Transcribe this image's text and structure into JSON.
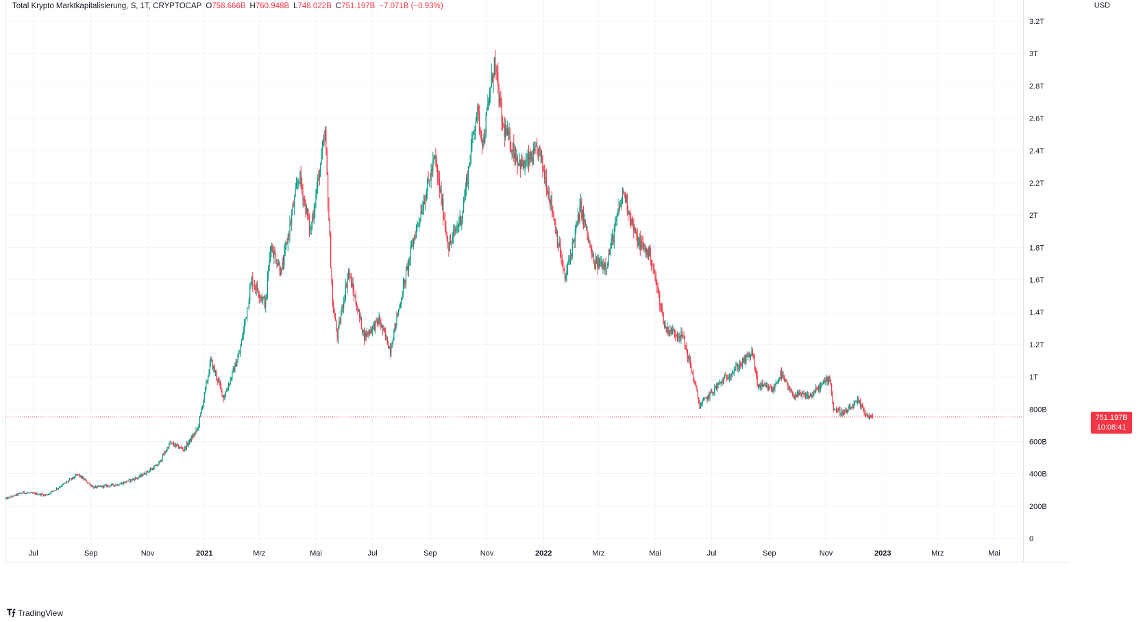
{
  "legend": {
    "symbol": "Total Krypto Marktkapitalisierung, S, 1T, CRYPTOCAP",
    "open_key": "O",
    "open": "758.666B",
    "high_key": "H",
    "high": "760.948B",
    "low_key": "L",
    "low": "748.022B",
    "close_key": "C",
    "close": "751.197B",
    "change": "−7.071B (−0.93%)"
  },
  "axis": {
    "currency": "USD",
    "y_ticks": [
      "0",
      "200B",
      "400B",
      "600B",
      "800B",
      "1T",
      "1.2T",
      "1.4T",
      "1.6T",
      "1.8T",
      "2T",
      "2.2T",
      "2.4T",
      "2.6T",
      "2.8T",
      "3T",
      "3.2T"
    ],
    "x_ticks": [
      {
        "label": "Jul",
        "bold": false
      },
      {
        "label": "Sep",
        "bold": false
      },
      {
        "label": "Nov",
        "bold": false
      },
      {
        "label": "2021",
        "bold": true
      },
      {
        "label": "Mrz",
        "bold": false
      },
      {
        "label": "Mai",
        "bold": false
      },
      {
        "label": "Jul",
        "bold": false
      },
      {
        "label": "Sep",
        "bold": false
      },
      {
        "label": "Nov",
        "bold": false
      },
      {
        "label": "2022",
        "bold": true
      },
      {
        "label": "Mrz",
        "bold": false
      },
      {
        "label": "Mai",
        "bold": false
      },
      {
        "label": "Jul",
        "bold": false
      },
      {
        "label": "Sep",
        "bold": false
      },
      {
        "label": "Nov",
        "bold": false
      },
      {
        "label": "2023",
        "bold": true
      },
      {
        "label": "Mrz",
        "bold": false
      },
      {
        "label": "Mai",
        "bold": false
      }
    ]
  },
  "price_tag": {
    "price": "751.197B",
    "countdown": "10:08:41"
  },
  "brand": {
    "name": "TradingView",
    "icon": "tradingview-logo-icon"
  },
  "colors": {
    "up": "#089981",
    "down": "#f23645",
    "grid": "#f0f3fa",
    "price_line": "#f23645"
  },
  "chart_data": {
    "type": "candlestick",
    "y_unit": "USD (billions)",
    "ylim": [
      0,
      3200
    ],
    "x_range": [
      "2020-06-01",
      "2023-06-01"
    ],
    "interval": "1 day",
    "grid": true,
    "last_price": 751.197,
    "anchors": [
      [
        "2020-06-01",
        245
      ],
      [
        "2020-06-20",
        285
      ],
      [
        "2020-07-15",
        268
      ],
      [
        "2020-08-01",
        330
      ],
      [
        "2020-08-18",
        395
      ],
      [
        "2020-09-04",
        315
      ],
      [
        "2020-10-01",
        335
      ],
      [
        "2020-10-22",
        378
      ],
      [
        "2020-11-12",
        455
      ],
      [
        "2020-11-25",
        590
      ],
      [
        "2020-12-10",
        550
      ],
      [
        "2020-12-25",
        680
      ],
      [
        "2021-01-08",
        1100
      ],
      [
        "2021-01-22",
        870
      ],
      [
        "2021-02-08",
        1150
      ],
      [
        "2021-02-21",
        1600
      ],
      [
        "2021-03-08",
        1450
      ],
      [
        "2021-03-13",
        1820
      ],
      [
        "2021-03-25",
        1650
      ],
      [
        "2021-04-13",
        2250
      ],
      [
        "2021-04-25",
        1900
      ],
      [
        "2021-05-11",
        2500
      ],
      [
        "2021-05-19",
        1450
      ],
      [
        "2021-05-24",
        1250
      ],
      [
        "2021-06-05",
        1650
      ],
      [
        "2021-06-22",
        1250
      ],
      [
        "2021-07-08",
        1350
      ],
      [
        "2021-07-20",
        1170
      ],
      [
        "2021-08-14",
        1850
      ],
      [
        "2021-09-06",
        2350
      ],
      [
        "2021-09-21",
        1800
      ],
      [
        "2021-10-05",
        2000
      ],
      [
        "2021-10-21",
        2650
      ],
      [
        "2021-10-28",
        2450
      ],
      [
        "2021-11-09",
        2950
      ],
      [
        "2021-11-18",
        2550
      ],
      [
        "2021-12-04",
        2350
      ],
      [
        "2021-12-10",
        2300
      ],
      [
        "2021-12-27",
        2400
      ],
      [
        "2022-01-10",
        2050
      ],
      [
        "2022-01-24",
        1600
      ],
      [
        "2022-02-10",
        2050
      ],
      [
        "2022-02-24",
        1700
      ],
      [
        "2022-03-10",
        1700
      ],
      [
        "2022-03-28",
        2150
      ],
      [
        "2022-04-11",
        1850
      ],
      [
        "2022-04-26",
        1750
      ],
      [
        "2022-05-12",
        1300
      ],
      [
        "2022-05-31",
        1250
      ],
      [
        "2022-06-13",
        950
      ],
      [
        "2022-06-18",
        820
      ],
      [
        "2022-07-08",
        950
      ],
      [
        "2022-08-14",
        1150
      ],
      [
        "2022-08-19",
        950
      ],
      [
        "2022-09-05",
        920
      ],
      [
        "2022-09-13",
        1020
      ],
      [
        "2022-09-25",
        890
      ],
      [
        "2022-10-15",
        880
      ],
      [
        "2022-11-05",
        1000
      ],
      [
        "2022-11-09",
        800
      ],
      [
        "2022-11-21",
        775
      ],
      [
        "2022-12-05",
        845
      ],
      [
        "2022-12-16",
        755
      ],
      [
        "2022-12-21",
        751.197
      ]
    ]
  }
}
